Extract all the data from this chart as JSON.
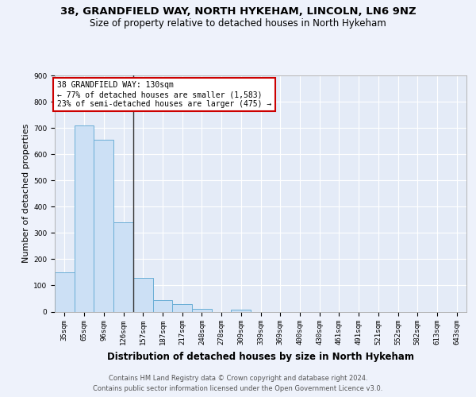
{
  "title_line1": "38, GRANDFIELD WAY, NORTH HYKEHAM, LINCOLN, LN6 9NZ",
  "title_line2": "Size of property relative to detached houses in North Hykeham",
  "xlabel": "Distribution of detached houses by size in North Hykeham",
  "ylabel": "Number of detached properties",
  "footer_line1": "Contains HM Land Registry data © Crown copyright and database right 2024.",
  "footer_line2": "Contains public sector information licensed under the Open Government Licence v3.0.",
  "annotation_line1": "38 GRANDFIELD WAY: 130sqm",
  "annotation_line2": "← 77% of detached houses are smaller (1,583)",
  "annotation_line3": "23% of semi-detached houses are larger (475) →",
  "categories": [
    "35sqm",
    "65sqm",
    "96sqm",
    "126sqm",
    "157sqm",
    "187sqm",
    "217sqm",
    "248sqm",
    "278sqm",
    "309sqm",
    "339sqm",
    "369sqm",
    "400sqm",
    "430sqm",
    "461sqm",
    "491sqm",
    "521sqm",
    "552sqm",
    "582sqm",
    "613sqm",
    "643sqm"
  ],
  "values": [
    150,
    710,
    655,
    340,
    128,
    45,
    28,
    10,
    0,
    8,
    0,
    0,
    0,
    0,
    0,
    0,
    0,
    0,
    0,
    0,
    0
  ],
  "bar_color": "#cce0f5",
  "bar_edge_color": "#6aaed6",
  "vline_color": "#333333",
  "annotation_box_color": "#ffffff",
  "annotation_box_edge_color": "#cc0000",
  "ylim": [
    0,
    900
  ],
  "yticks": [
    0,
    100,
    200,
    300,
    400,
    500,
    600,
    700,
    800,
    900
  ],
  "background_color": "#eef2fb",
  "plot_background": "#e4ebf7",
  "grid_color": "#ffffff",
  "title_fontsize": 9.5,
  "subtitle_fontsize": 8.5,
  "axis_label_fontsize": 8,
  "tick_fontsize": 6.5,
  "footer_fontsize": 6,
  "vline_x_index": 3.5
}
